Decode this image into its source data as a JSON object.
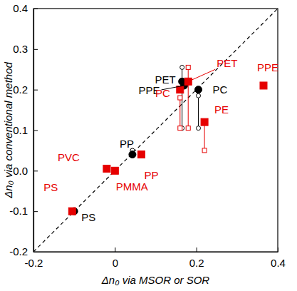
{
  "chart_data": {
    "type": "scatter",
    "x_label": "Δn₀ via MSOR or SOR",
    "y_label": "Δn₀ via conventional method",
    "xlim": [
      -0.2,
      0.4
    ],
    "ylim": [
      -0.2,
      0.4
    ],
    "xticks": [
      -0.2,
      0,
      0.2,
      0.4
    ],
    "yticks": [
      -0.2,
      -0.1,
      {
        "value": 0,
        "label": "0.0"
      },
      0.1,
      0.2,
      0.3,
      0.4
    ],
    "series": [
      {
        "color": "#000000",
        "marker": "circle",
        "labels": [
          "PET",
          "PPE",
          "PC",
          "PP",
          "PS"
        ],
        "x": [
          0.165,
          0.17,
          0.205,
          0.043,
          -0.1
        ],
        "values": [
          0.22,
          0.21,
          0.2,
          0.04,
          -0.1
        ],
        "ranges": [
          [
            0.105,
            0.255
          ],
          null,
          [
            0.105,
            0.185
          ],
          [
            0.04,
            0.05
          ],
          null
        ]
      },
      {
        "color": "#e60000",
        "marker": "square",
        "labels": [
          "PET",
          "PC",
          "PE",
          "PPE",
          "PVC",
          "PMMA",
          "PP",
          "PS"
        ],
        "x": [
          0.18,
          0.16,
          0.22,
          0.365,
          -0.02,
          0.0,
          0.065,
          -0.105
        ],
        "values": [
          0.22,
          0.2,
          0.12,
          0.21,
          0.005,
          0.0,
          0.04,
          -0.1
        ],
        "ranges": [
          [
            0.105,
            0.255
          ],
          [
            0.105,
            0.18
          ],
          [
            0.05,
            0.12
          ],
          null,
          null,
          null,
          null,
          null
        ]
      }
    ]
  }
}
